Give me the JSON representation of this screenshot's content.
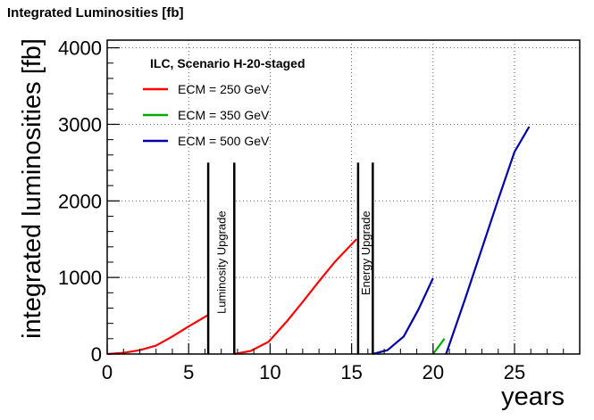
{
  "chart_data": {
    "type": "line",
    "title": "Integrated Luminosities  [fb]",
    "xlabel": "years",
    "ylabel": "integrated luminosities  [fb]",
    "xlim": [
      0,
      29
    ],
    "ylim": [
      0,
      4100
    ],
    "x_ticks": [
      0,
      5,
      10,
      15,
      20,
      25
    ],
    "y_ticks": [
      0,
      1000,
      2000,
      3000,
      4000
    ],
    "grid": true,
    "legend_title": "ILC, Scenario H-20-staged",
    "legend_position": "top-left",
    "series": [
      {
        "name": "ECM = 250 GeV",
        "color": "#ff0000",
        "segments": [
          [
            [
              0,
              0
            ],
            [
              1,
              15
            ],
            [
              2,
              50
            ],
            [
              3,
              110
            ],
            [
              4,
              230
            ],
            [
              5,
              360
            ],
            [
              6.2,
              510
            ]
          ],
          [
            [
              7.8,
              0
            ],
            [
              8.8,
              40
            ],
            [
              9.9,
              160
            ],
            [
              11,
              420
            ],
            [
              12,
              680
            ],
            [
              13,
              950
            ],
            [
              14,
              1210
            ],
            [
              15.3,
              1500
            ]
          ]
        ]
      },
      {
        "name": "ECM = 350 GeV",
        "color": "#00aa00",
        "segments": [
          [
            [
              20,
              0
            ],
            [
              20.7,
              200
            ]
          ]
        ]
      },
      {
        "name": "ECM = 500 GeV",
        "color": "#0000aa",
        "segments": [
          [
            [
              16.3,
              0
            ],
            [
              17.2,
              50
            ],
            [
              18.2,
              230
            ],
            [
              19.1,
              580
            ],
            [
              20,
              990
            ]
          ],
          [
            [
              20.8,
              0
            ],
            [
              22,
              740
            ],
            [
              23,
              1380
            ],
            [
              24,
              2020
            ],
            [
              25,
              2640
            ],
            [
              25.9,
              2970
            ]
          ]
        ]
      }
    ],
    "annotations": [
      {
        "text": "Luminosity Upgrade",
        "x_range": [
          6.2,
          7.8
        ],
        "y_top": 2500
      },
      {
        "text": "Energy Upgrade",
        "x_range": [
          15.4,
          16.3
        ],
        "y_top": 2500
      }
    ]
  }
}
